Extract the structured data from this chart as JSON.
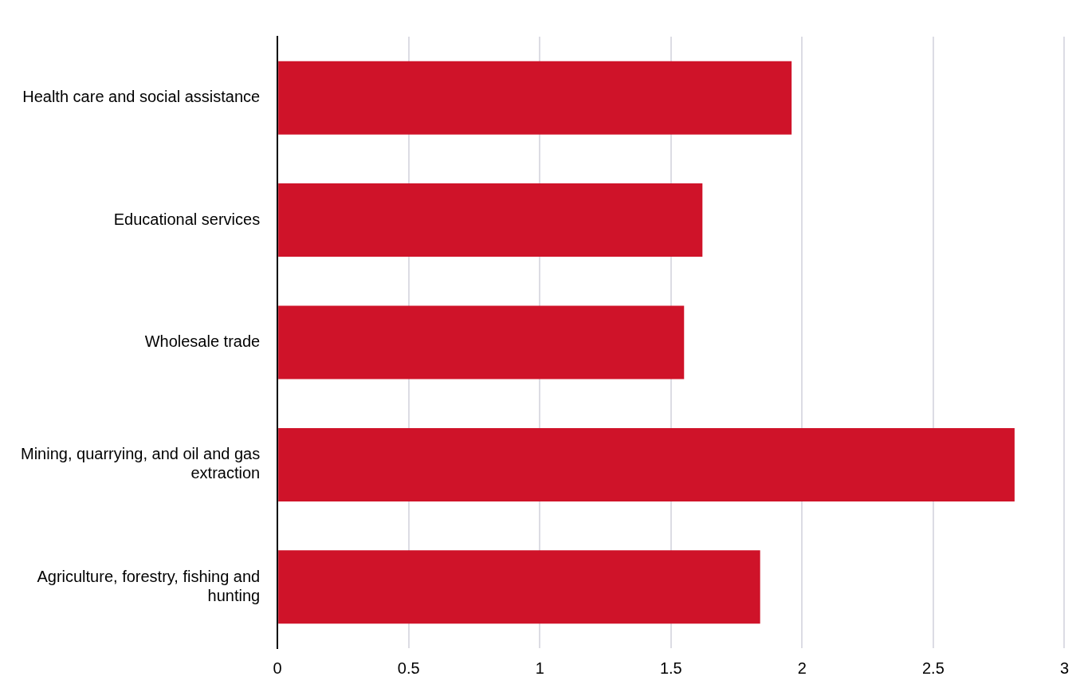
{
  "chart_data": {
    "type": "bar",
    "orientation": "horizontal",
    "categories": [
      "Health care and social assistance",
      "Educational services",
      "Wholesale trade",
      "Mining, quarrying, and oil and gas extraction",
      "Agriculture, forestry, fishing and hunting"
    ],
    "values": [
      1.96,
      1.62,
      1.55,
      2.81,
      1.84
    ],
    "color": "#cf1329",
    "xlim": [
      0,
      3
    ],
    "xticks": [
      0,
      0.5,
      1,
      1.5,
      2,
      2.5,
      3
    ],
    "grid": "x",
    "legend": false
  }
}
